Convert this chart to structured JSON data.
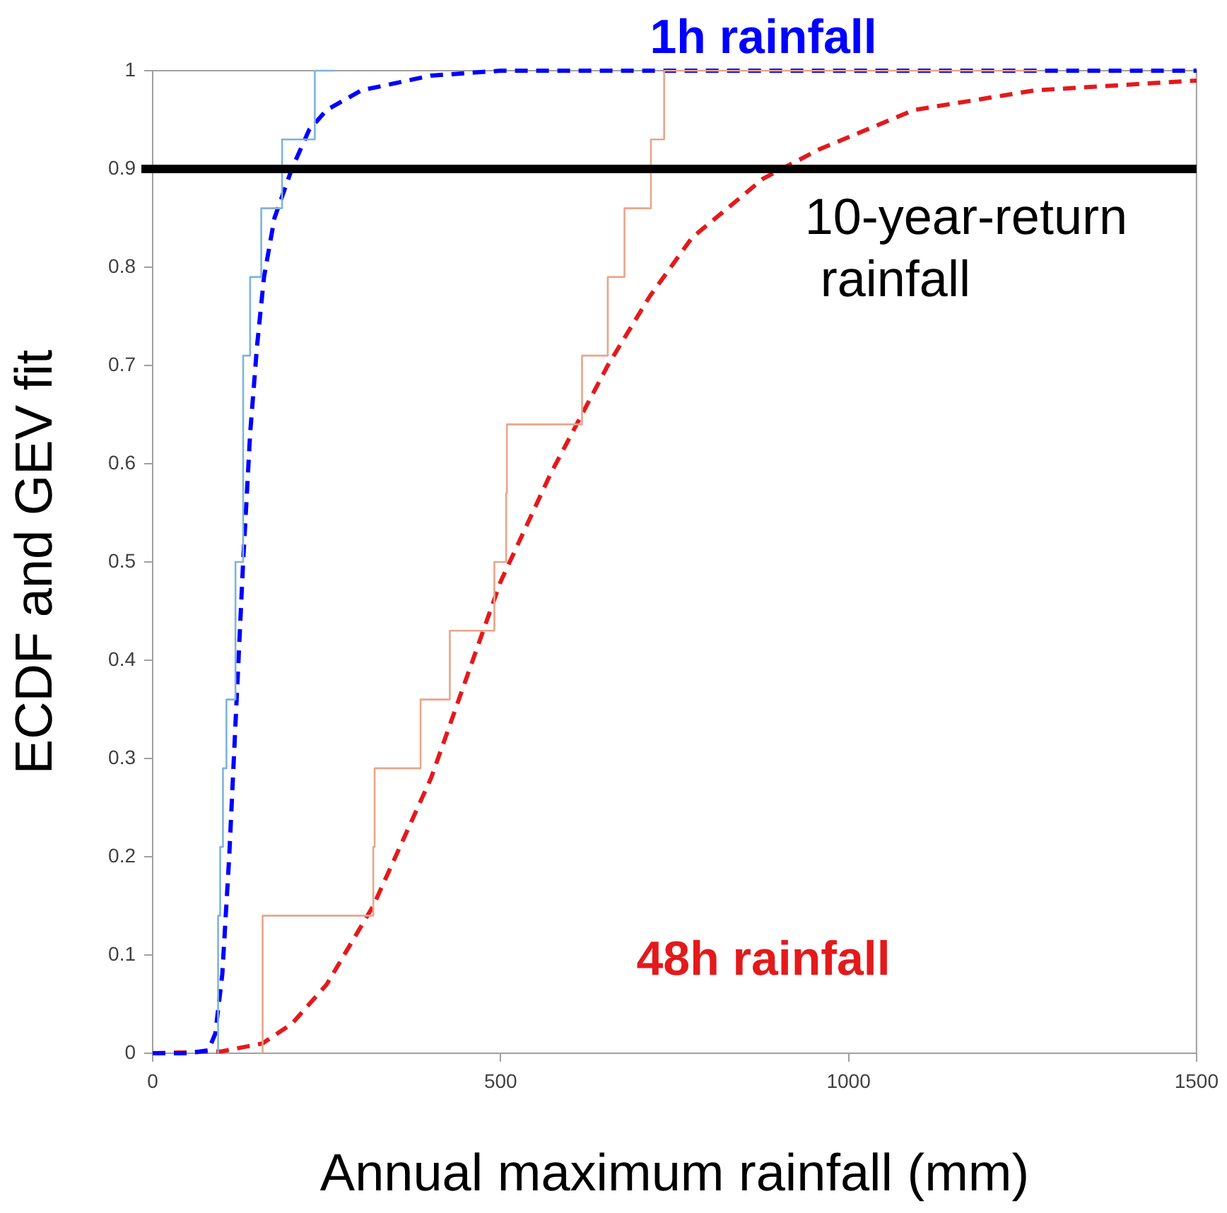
{
  "chart_data": {
    "type": "line",
    "xlabel": "Annual maximum rainfall (mm)",
    "ylabel": "ECDF and GEV fit",
    "xlim": [
      0,
      1500
    ],
    "xticks": [
      0,
      500,
      1000,
      1500
    ],
    "ylim": [
      0,
      1
    ],
    "yticks": [
      0,
      0.1,
      0.2,
      0.3,
      0.4,
      0.5,
      0.6,
      0.7,
      0.8,
      0.9,
      1
    ],
    "grid": false,
    "legend": false,
    "marker": "none",
    "series": [
      {
        "type": "step",
        "color": "#7fb3d9",
        "x": [
          94,
          94,
          97,
          101,
          106,
          119,
          119,
          130,
          130,
          130,
          140,
          156,
          186,
          233,
          261
        ],
        "values": [
          0,
          0.07,
          0.14,
          0.21,
          0.29,
          0.36,
          0.43,
          0.5,
          0.57,
          0.64,
          0.71,
          0.79,
          0.86,
          0.93,
          1
        ]
      },
      {
        "type": "line",
        "name": "1h rainfall",
        "color": "#0000ff",
        "line_style": "dashed",
        "x": [
          0,
          50,
          80,
          90,
          100,
          110,
          120,
          130,
          140,
          150,
          160,
          175,
          200,
          225,
          250,
          300,
          400,
          500,
          1500
        ],
        "values": [
          0,
          0,
          0.003,
          0.02,
          0.08,
          0.2,
          0.35,
          0.5,
          0.63,
          0.72,
          0.79,
          0.85,
          0.9,
          0.94,
          0.96,
          0.98,
          0.995,
          1,
          1
        ]
      },
      {
        "type": "step",
        "color": "#e8a58a",
        "x": [
          158,
          158,
          317,
          319,
          385,
          427,
          491,
          508,
          509,
          617,
          654,
          678,
          716,
          735,
          1273
        ],
        "values": [
          0,
          0.07,
          0.14,
          0.21,
          0.29,
          0.36,
          0.43,
          0.5,
          0.57,
          0.64,
          0.71,
          0.79,
          0.86,
          0.93,
          1
        ]
      },
      {
        "type": "line",
        "name": "48h rainfall",
        "color": "#e31a1c",
        "line_style": "dashed",
        "x": [
          0,
          100,
          158,
          200,
          250,
          317,
          400,
          500,
          572,
          654,
          714,
          775,
          877,
          958,
          1094,
          1268,
          1500
        ],
        "values": [
          0,
          0.002,
          0.01,
          0.03,
          0.07,
          0.15,
          0.28,
          0.48,
          0.59,
          0.7,
          0.77,
          0.83,
          0.89,
          0.92,
          0.96,
          0.98,
          0.99
        ]
      }
    ],
    "ref_lines": [
      {
        "axis": "y",
        "value": 0.9,
        "label": "10-year-return rainfall",
        "color": "#000000"
      }
    ]
  }
}
